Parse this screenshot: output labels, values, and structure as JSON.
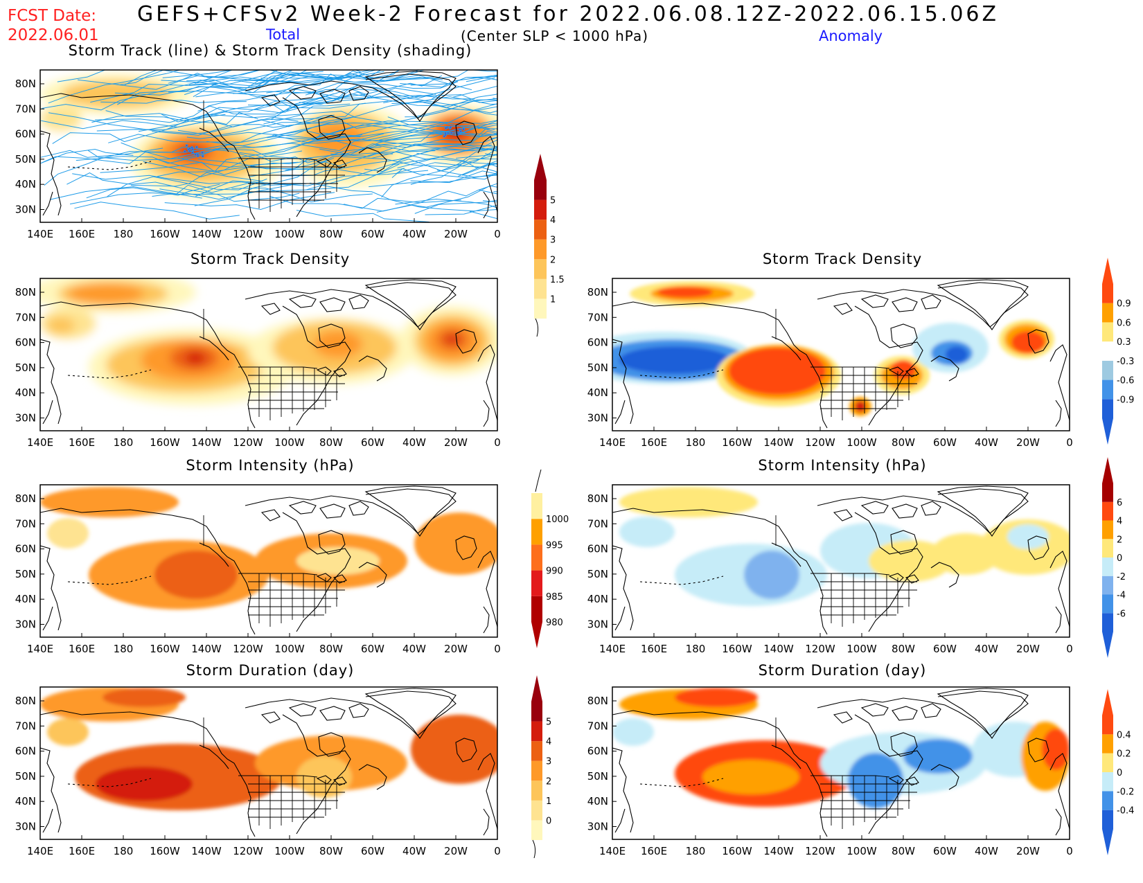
{
  "header": {
    "fcst_label": "FCST Date:",
    "fcst_date": "2022.06.01",
    "main_title": "GEFS+CFSv2 Week-2 Forecast for 2022.06.08.12Z-2022.06.15.06Z",
    "subtitle": "(Center SLP < 1000 hPa)",
    "total_label": "Total",
    "anomaly_label": "Anomaly"
  },
  "axes": {
    "lon_ticks": [
      "140E",
      "160E",
      "180",
      "160W",
      "140W",
      "120W",
      "100W",
      "80W",
      "60W",
      "40W",
      "20W",
      "0"
    ],
    "lat_ticks": [
      "80N",
      "70N",
      "60N",
      "50N",
      "40N",
      "30N"
    ]
  },
  "panels": [
    {
      "id": "track-total",
      "title": "Storm Track (line) & Storm Track Density (shading)",
      "palette": "density",
      "tracks": true
    },
    {
      "id": "density-total",
      "title": "Storm Track Density",
      "palette": "density"
    },
    {
      "id": "density-anom",
      "title": "Storm Track Density",
      "palette": "anom"
    },
    {
      "id": "intensity-total",
      "title": "Storm Intensity (hPa)",
      "palette": "intensity"
    },
    {
      "id": "intensity-anom",
      "title": "Storm Intensity (hPa)",
      "palette": "anom"
    },
    {
      "id": "duration-total",
      "title": "Storm Duration (day)",
      "palette": "density"
    },
    {
      "id": "duration-anom",
      "title": "Storm Duration (day)",
      "palette": "anom"
    }
  ],
  "colorbars": [
    {
      "id": "cb-density",
      "labels": [
        "1",
        "1.5",
        "2",
        "3",
        "4",
        "5"
      ],
      "colors": [
        "#fff7bc",
        "#fee391",
        "#fdc55a",
        "#fe9929",
        "#ec6012",
        "#d41d0d",
        "#99000d"
      ]
    },
    {
      "id": "cb-density-anom",
      "labels": [
        "-0.9",
        "-0.6",
        "-0.3",
        "0.3",
        "0.6",
        "0.9"
      ],
      "colors": [
        "#1f5fd8",
        "#4292e8",
        "#9ecae1",
        "#ffffff",
        "#ffe87a",
        "#ffa000",
        "#ff4a10"
      ]
    },
    {
      "id": "cb-intensity",
      "labels": [
        "980",
        "985",
        "990",
        "995",
        "1000"
      ],
      "colors": [
        "#b00000",
        "#e31a1c",
        "#fd6f1c",
        "#fea000",
        "#fff0a0"
      ]
    },
    {
      "id": "cb-intensity-anom",
      "labels": [
        "-6",
        "-4",
        "-2",
        "0",
        "2",
        "4",
        "6"
      ],
      "colors": [
        "#1f5fd8",
        "#4292e8",
        "#7fb2ee",
        "#c6ecf8",
        "#ffe87a",
        "#ffa000",
        "#ff4a10",
        "#a50000"
      ]
    },
    {
      "id": "cb-duration",
      "labels": [
        "0",
        "1",
        "2",
        "3",
        "4",
        "5"
      ],
      "colors": [
        "#fff7bc",
        "#fee391",
        "#fdc55a",
        "#fe9929",
        "#ec6012",
        "#d41d0d",
        "#99000d"
      ]
    },
    {
      "id": "cb-duration-anom",
      "labels": [
        "-0.4",
        "-0.2",
        "0",
        "0.2",
        "0.4"
      ],
      "colors": [
        "#1f5fd8",
        "#4292e8",
        "#c6ecf8",
        "#ffe87a",
        "#ffa000",
        "#ff4a10"
      ]
    }
  ]
}
